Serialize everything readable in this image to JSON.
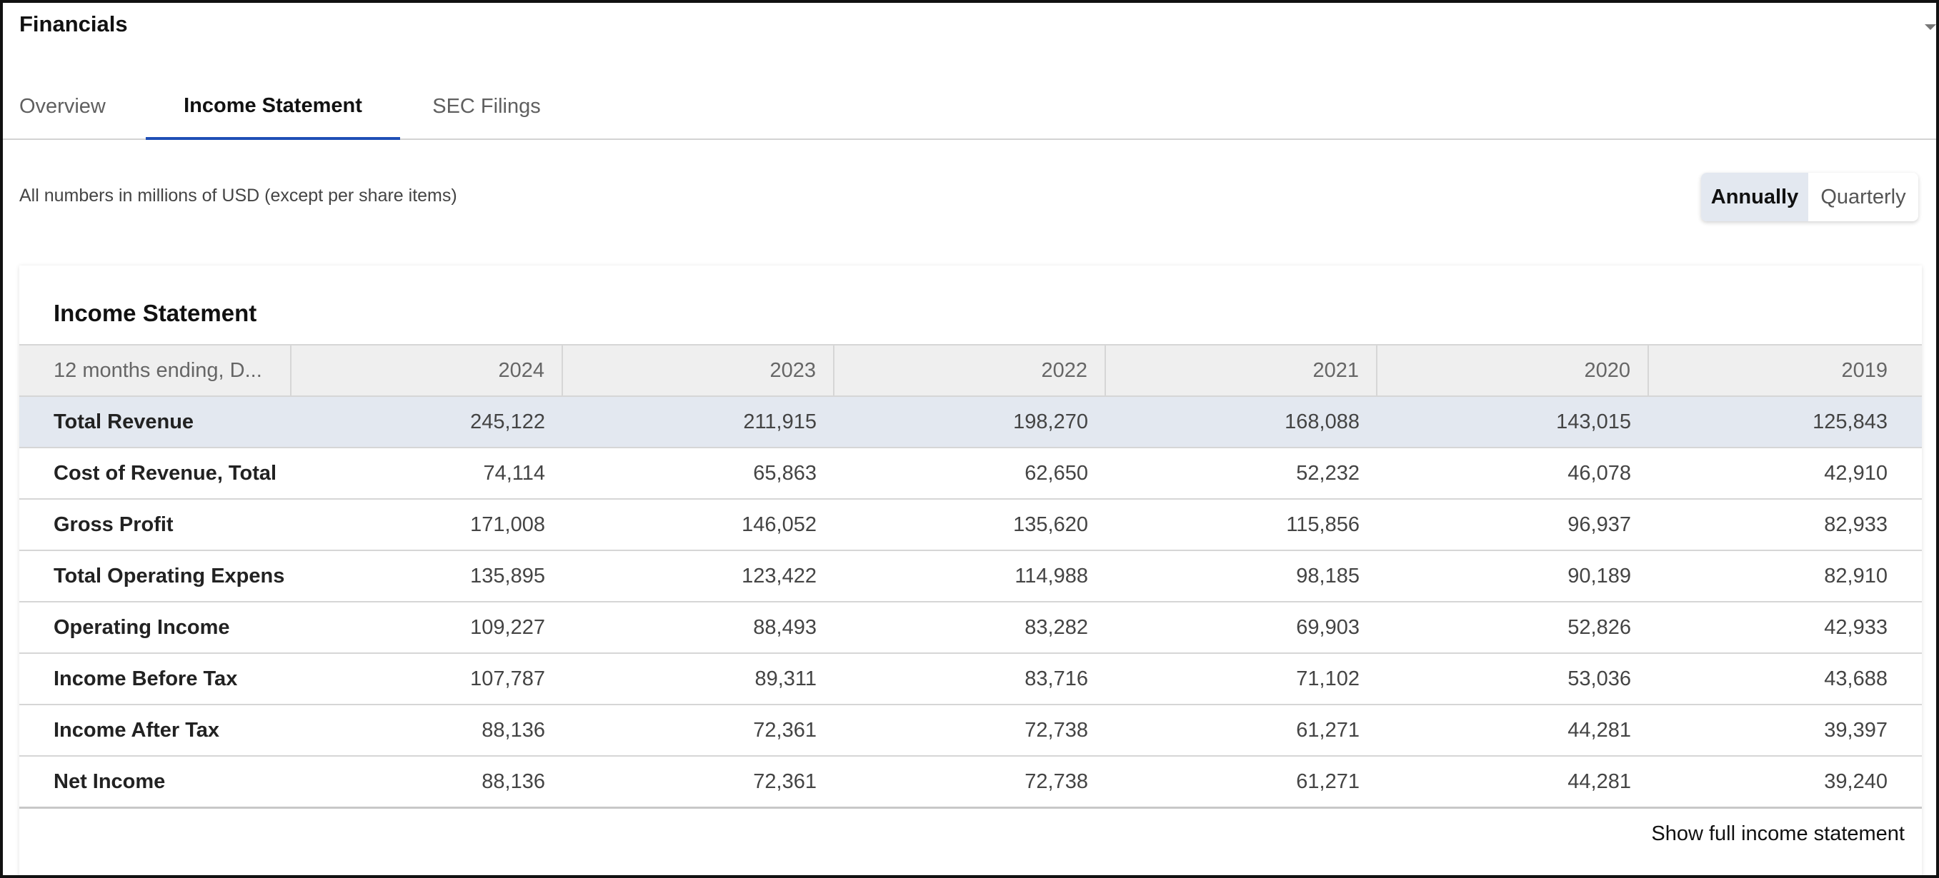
{
  "header": {
    "title": "Financials"
  },
  "tabs": [
    {
      "label": "Overview"
    },
    {
      "label": "Income Statement"
    },
    {
      "label": "SEC Filings"
    }
  ],
  "units_note": "All numbers in millions of USD (except per share items)",
  "period_toggle": {
    "annually": "Annually",
    "quarterly": "Quarterly",
    "selected": "Annually"
  },
  "card": {
    "title": "Income Statement",
    "period_header": "12 months ending, D...",
    "years": [
      "2024",
      "2023",
      "2022",
      "2021",
      "2020",
      "2019"
    ],
    "rows": [
      {
        "label": "Total Revenue",
        "values": [
          "245,122",
          "211,915",
          "198,270",
          "168,088",
          "143,015",
          "125,843"
        ]
      },
      {
        "label": "Cost of Revenue, Total",
        "values": [
          "74,114",
          "65,863",
          "62,650",
          "52,232",
          "46,078",
          "42,910"
        ]
      },
      {
        "label": "Gross Profit",
        "values": [
          "171,008",
          "146,052",
          "135,620",
          "115,856",
          "96,937",
          "82,933"
        ]
      },
      {
        "label": "Total Operating Expens",
        "values": [
          "135,895",
          "123,422",
          "114,988",
          "98,185",
          "90,189",
          "82,910"
        ]
      },
      {
        "label": "Operating Income",
        "values": [
          "109,227",
          "88,493",
          "83,282",
          "69,903",
          "52,826",
          "42,933"
        ]
      },
      {
        "label": "Income Before Tax",
        "values": [
          "107,787",
          "89,311",
          "83,716",
          "71,102",
          "53,036",
          "43,688"
        ]
      },
      {
        "label": "Income After Tax",
        "values": [
          "88,136",
          "72,361",
          "72,738",
          "61,271",
          "44,281",
          "39,397"
        ]
      },
      {
        "label": "Net Income",
        "values": [
          "88,136",
          "72,361",
          "72,738",
          "61,271",
          "44,281",
          "39,240"
        ]
      }
    ],
    "show_full_label": "Show full income statement"
  },
  "colors": {
    "accent": "#1f4fb6",
    "highlight_row": "#e3e8f0",
    "header_bg": "#efefef"
  }
}
